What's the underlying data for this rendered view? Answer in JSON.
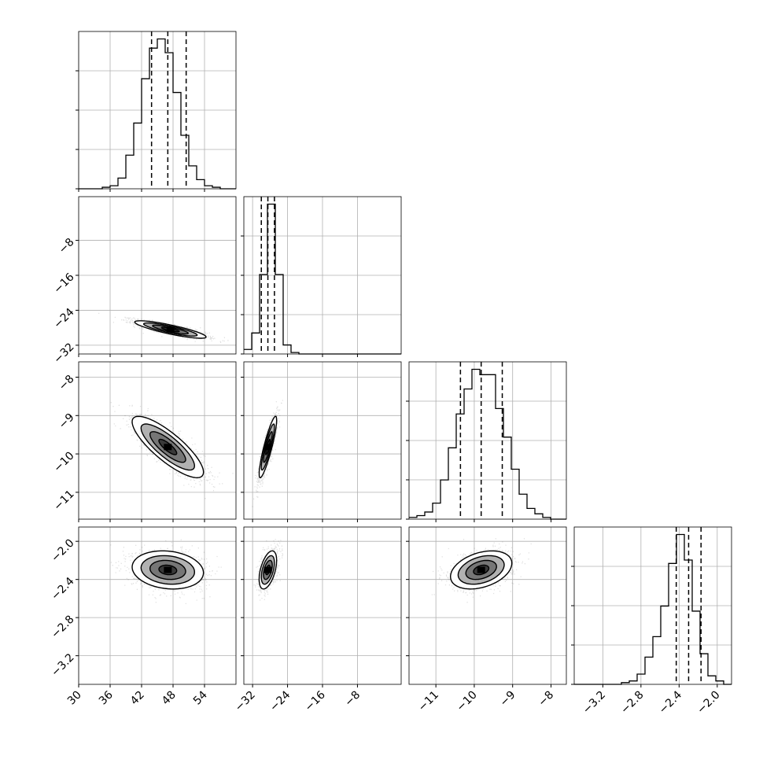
{
  "chart_data": {
    "type": "corner",
    "n_params": 4,
    "grid": true,
    "params": [
      {
        "range": [
          30,
          60
        ],
        "ticks": [
          30,
          36,
          42,
          48,
          54
        ],
        "tick_labels": [
          "30",
          "36",
          "42",
          "48",
          "54"
        ]
      },
      {
        "range": [
          -34,
          2
        ],
        "ticks": [
          -32,
          -24,
          -16,
          -8
        ],
        "tick_labels": [
          "−32",
          "−24",
          "−16",
          "−8"
        ]
      },
      {
        "range": [
          -11.7,
          -7.6
        ],
        "ticks": [
          -11,
          -10,
          -9,
          -8
        ],
        "tick_labels": [
          "−11",
          "−10",
          "−9",
          "−8"
        ]
      },
      {
        "range": [
          -3.5,
          -1.85
        ],
        "ticks": [
          -3.2,
          -2.8,
          -2.4,
          -2.0
        ],
        "tick_labels": [
          "−3.2",
          "−2.8",
          "−2.4",
          "−2.0"
        ]
      }
    ],
    "marginals": [
      {
        "bins_start": 30,
        "bin_width": 1.5,
        "counts": [
          0,
          0,
          0,
          1,
          2,
          7,
          22,
          43,
          72,
          92,
          98,
          89,
          63,
          35,
          15,
          6,
          2,
          1,
          0,
          0
        ],
        "quantiles": [
          43.9,
          47.0,
          50.5
        ]
      },
      {
        "bins_start": -34,
        "bin_width": 1.8,
        "counts": [
          3,
          14,
          53,
          100,
          53,
          6,
          1,
          0,
          0,
          0,
          0,
          0,
          0,
          0,
          0,
          0,
          0,
          0,
          0,
          0
        ],
        "quantiles": [
          -30.0,
          -28.5,
          -27.0
        ]
      },
      {
        "bins_start": -11.7,
        "bin_width": 0.205,
        "counts": [
          1,
          2,
          4,
          9,
          22,
          40,
          59,
          73,
          84,
          81,
          81,
          62,
          46,
          28,
          14,
          6,
          3,
          1,
          0,
          0
        ],
        "quantiles": [
          -10.36,
          -9.82,
          -9.27
        ]
      },
      {
        "bins_start": -3.5,
        "bin_width": 0.0825,
        "counts": [
          0,
          0,
          0,
          0,
          0,
          0,
          1,
          2,
          6,
          16,
          28,
          46,
          71,
          88,
          73,
          43,
          18,
          5,
          2,
          0
        ],
        "quantiles": [
          -2.43,
          -2.3,
          -2.17
        ]
      }
    ],
    "pairs": [
      {
        "x_param": 0,
        "y_param": 1,
        "x_mean": 47.5,
        "y_mean": -28.4,
        "x_sd": 3.4,
        "y_sd": 1.0,
        "corr": -0.85
      },
      {
        "x_param": 0,
        "y_param": 2,
        "x_mean": 47.0,
        "y_mean": -9.82,
        "x_sd": 3.4,
        "y_sd": 0.4,
        "corr": -0.82
      },
      {
        "x_param": 1,
        "y_param": 2,
        "x_mean": -28.5,
        "y_mean": -9.82,
        "x_sd": 1.0,
        "y_sd": 0.4,
        "corr": 0.88
      },
      {
        "x_param": 0,
        "y_param": 3,
        "x_mean": 47.0,
        "y_mean": -2.3,
        "x_sd": 3.4,
        "y_sd": 0.1,
        "corr": -0.15
      },
      {
        "x_param": 1,
        "y_param": 3,
        "x_mean": -28.5,
        "y_mean": -2.3,
        "x_sd": 1.0,
        "y_sd": 0.1,
        "corr": 0.5
      },
      {
        "x_param": 2,
        "y_param": 3,
        "x_mean": -9.82,
        "y_mean": -2.3,
        "x_sd": 0.4,
        "y_sd": 0.1,
        "corr": 0.35
      }
    ],
    "contour_sigmas": [
      0.5,
      1.0,
      1.5,
      2.0
    ]
  }
}
